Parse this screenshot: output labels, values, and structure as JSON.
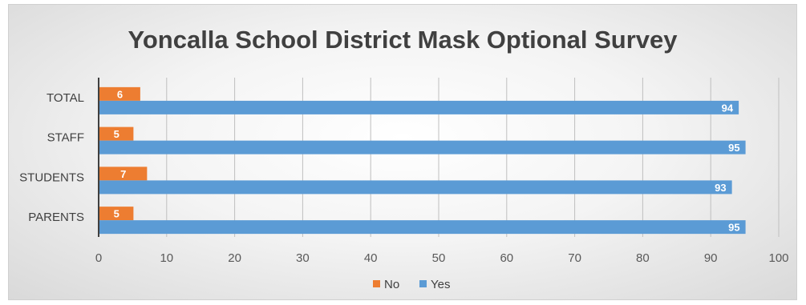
{
  "chart_data": {
    "type": "bar",
    "orientation": "horizontal",
    "title": "Yoncalla School District Mask Optional Survey",
    "categories": [
      "TOTAL",
      "STAFF",
      "STUDENTS",
      "PARENTS"
    ],
    "series": [
      {
        "name": "No",
        "color": "#ED7D31",
        "values": [
          6,
          5,
          7,
          5
        ]
      },
      {
        "name": "Yes",
        "color": "#5B9BD5",
        "values": [
          94,
          95,
          93,
          95
        ]
      }
    ],
    "xlim": [
      0,
      100
    ],
    "xticks": [
      0,
      10,
      20,
      30,
      40,
      50,
      60,
      70,
      80,
      90,
      100
    ],
    "grid": true,
    "legend": "bottom",
    "data_labels": true
  }
}
